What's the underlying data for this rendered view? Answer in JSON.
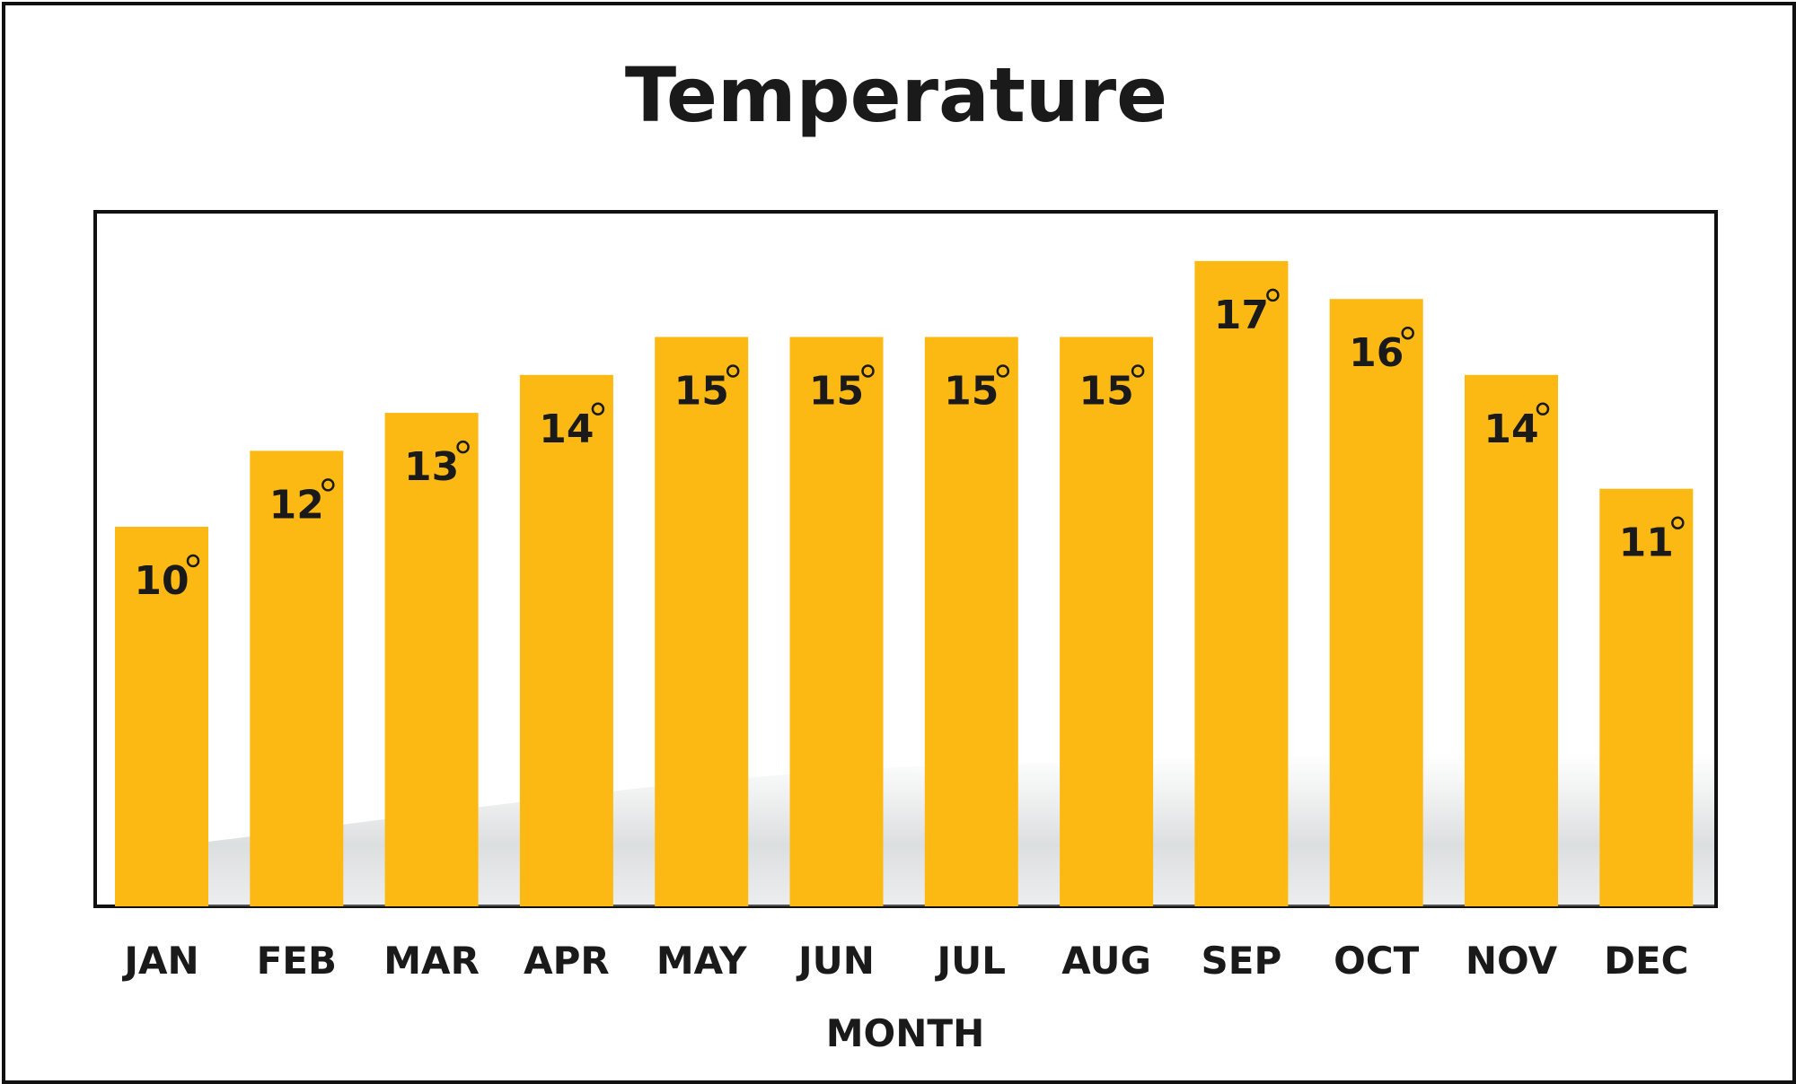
{
  "chart_data": {
    "type": "bar",
    "title": "Temperature",
    "xlabel": "MONTH",
    "ylabel": "",
    "categories": [
      "JAN",
      "FEB",
      "MAR",
      "APR",
      "MAY",
      "JUN",
      "JUL",
      "AUG",
      "SEP",
      "OCT",
      "NOV",
      "DEC"
    ],
    "values": [
      10,
      12,
      13,
      14,
      15,
      15,
      15,
      15,
      17,
      16,
      14,
      11
    ],
    "data_labels": [
      "10",
      "12",
      "13",
      "14",
      "15",
      "15",
      "15",
      "15",
      "17",
      "16",
      "14",
      "11"
    ],
    "label_suffix_symbol": "degree-circle",
    "ylim": [
      0,
      18
    ],
    "grid": false,
    "legend": "none",
    "bar_color": "#FDB913",
    "plot_border_color": "#111111"
  }
}
